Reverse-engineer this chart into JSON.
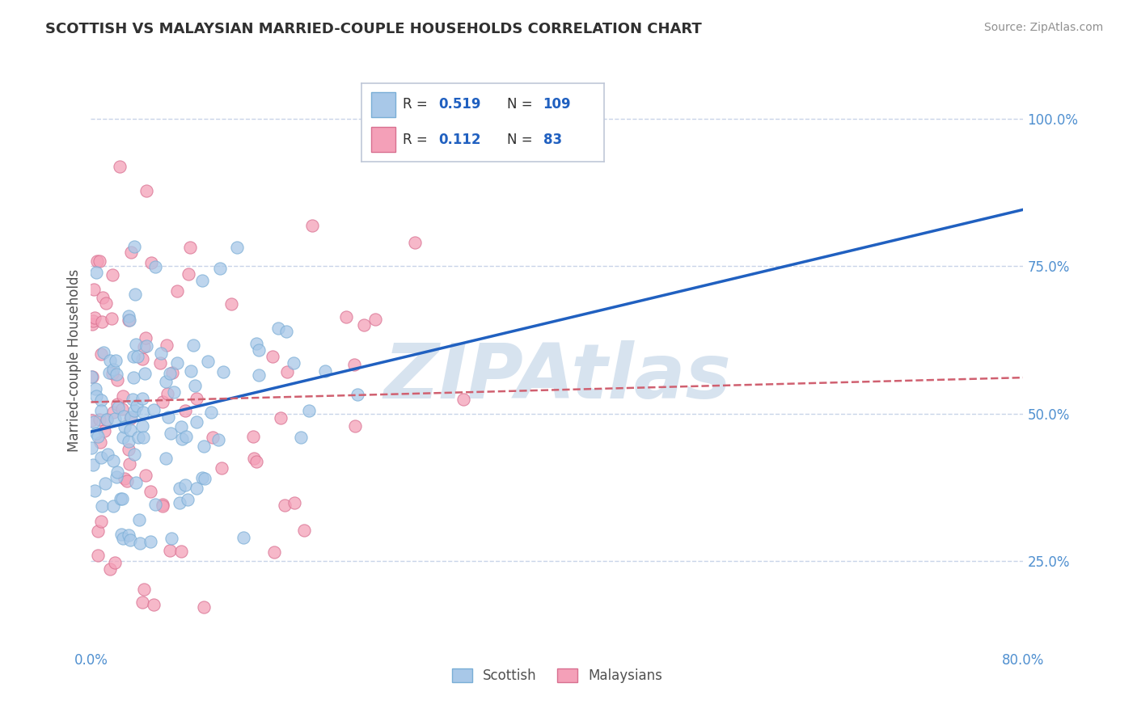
{
  "title": "SCOTTISH VS MALAYSIAN MARRIED-COUPLE HOUSEHOLDS CORRELATION CHART",
  "source_text": "Source: ZipAtlas.com",
  "ylabel": "Married-couple Households",
  "xlim": [
    0.0,
    0.8
  ],
  "ylim": [
    0.1,
    1.08
  ],
  "yticks": [
    0.25,
    0.5,
    0.75,
    1.0
  ],
  "yticklabels": [
    "25.0%",
    "50.0%",
    "75.0%",
    "100.0%"
  ],
  "scottish_R": 0.519,
  "scottish_N": 109,
  "malaysian_R": 0.112,
  "malaysian_N": 83,
  "scottish_color": "#a8c8e8",
  "scottish_edge_color": "#7aaed6",
  "malaysian_color": "#f4a0b8",
  "malaysian_edge_color": "#d87090",
  "scottish_line_color": "#2060c0",
  "malaysian_line_color": "#d06070",
  "grid_color": "#c8d4e8",
  "title_color": "#303030",
  "axis_color": "#5090d0",
  "watermark_color": "#b0c8e0",
  "background_color": "#ffffff",
  "legend_box_color": "#ffffff",
  "legend_border_color": "#c0c8d8"
}
